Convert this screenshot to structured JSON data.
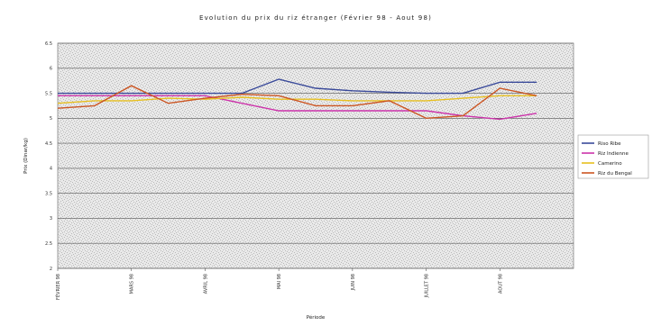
{
  "chart_data": {
    "type": "line",
    "title": "Evolution du prix du riz étranger (Février 98 - Aout 98)",
    "xlabel": "Période",
    "ylabel": "Prix (Dinar/kg)",
    "ylim": [
      2,
      6.5
    ],
    "yticks": [
      "2",
      "2.5",
      "3",
      "3.5",
      "4",
      "4.5",
      "5",
      "5.5",
      "6",
      "6.5"
    ],
    "categories": [
      "FÉVRIER 98",
      "MARS 98",
      "AVRIL 98",
      "MAI 98",
      "JUIN 98",
      "JUILLET 98",
      "AOUT 98"
    ],
    "x": [
      0,
      0.5,
      1,
      1.5,
      2,
      2.5,
      3,
      3.5,
      4,
      4.5,
      5,
      5.5,
      6,
      6.5
    ],
    "series": [
      {
        "name": "Riso Ribe",
        "color": "#3a4a9a",
        "values": [
          5.5,
          5.5,
          5.5,
          5.5,
          5.5,
          5.5,
          5.78,
          5.6,
          5.55,
          5.52,
          5.5,
          5.5,
          5.72,
          5.72
        ]
      },
      {
        "name": "Riz Indienne",
        "color": "#cc33aa",
        "values": [
          5.45,
          5.45,
          5.45,
          5.45,
          5.45,
          5.3,
          5.15,
          5.15,
          5.15,
          5.15,
          5.15,
          5.05,
          4.98,
          5.1
        ]
      },
      {
        "name": "Camerino",
        "color": "#e8c020",
        "values": [
          5.3,
          5.35,
          5.35,
          5.4,
          5.38,
          5.42,
          5.38,
          5.38,
          5.35,
          5.35,
          5.35,
          5.4,
          5.45,
          5.45
        ]
      },
      {
        "name": "Riz du Bengal",
        "color": "#cc5522",
        "values": [
          5.2,
          5.25,
          5.65,
          5.3,
          5.4,
          5.48,
          5.45,
          5.25,
          5.25,
          5.35,
          5.0,
          5.05,
          5.6,
          5.45
        ]
      }
    ],
    "legend_position": "right",
    "grid": true
  }
}
